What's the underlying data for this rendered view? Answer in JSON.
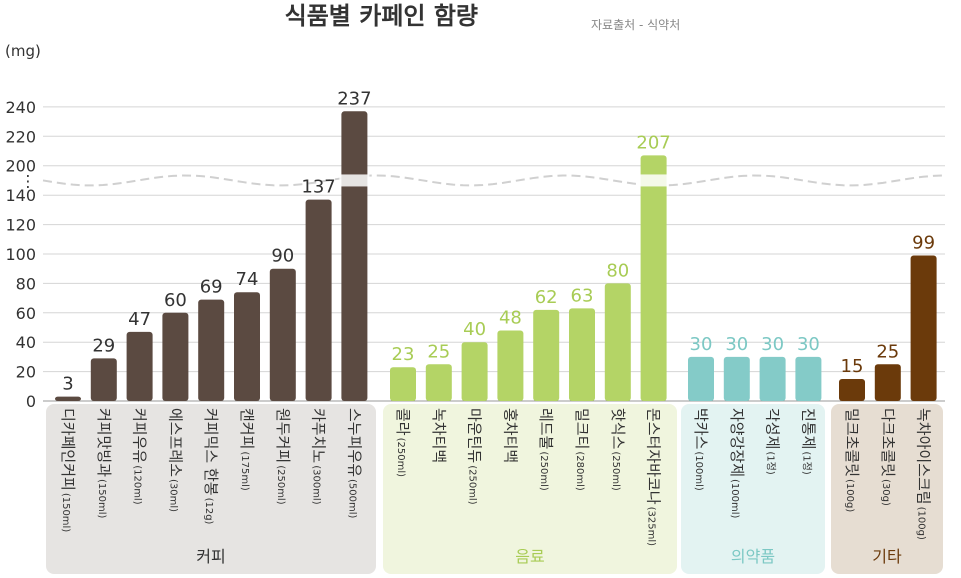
{
  "chart_data": {
    "type": "bar",
    "title": "식품별 카페인 함량",
    "source": "자료출처 - 식약처",
    "unit": "(mg)",
    "y_ticks": [
      "240",
      "220",
      "200",
      "⋮",
      "140",
      "120",
      "100",
      "80",
      "60",
      "40",
      "20",
      "0"
    ],
    "axis_break": {
      "from": 140,
      "to": 200
    },
    "ylim": [
      0,
      240
    ],
    "grid": true,
    "groups": [
      {
        "name": "커피",
        "bar_color": "#5b4a41",
        "label_color": "#333333",
        "bg_color": "#e6e4e2",
        "items": [
          {
            "name": "디카페인커피",
            "amount": "(150ml)",
            "value": 3
          },
          {
            "name": "커피맛빙과",
            "amount": "(150ml)",
            "value": 29
          },
          {
            "name": "커피우유",
            "amount": "(120ml)",
            "value": 47
          },
          {
            "name": "에스프레소",
            "amount": "(30ml)",
            "value": 60
          },
          {
            "name": "커피믹스 한봉",
            "amount": "(12g)",
            "value": 69
          },
          {
            "name": "캔커피",
            "amount": "(175ml)",
            "value": 74
          },
          {
            "name": "원두커피",
            "amount": "(250ml)",
            "value": 90
          },
          {
            "name": "카푸치노",
            "amount": "(300ml)",
            "value": 137
          },
          {
            "name": "스누피우유",
            "amount": "(500ml)",
            "value": 237
          }
        ]
      },
      {
        "name": "음료",
        "bar_color": "#b4d466",
        "label_color": "#a8cc55",
        "bg_color": "#f0f5de",
        "items": [
          {
            "name": "콜라",
            "amount": "(250ml)",
            "value": 23
          },
          {
            "name": "녹차티백",
            "amount": "",
            "value": 25
          },
          {
            "name": "마운틴듀",
            "amount": "(250ml)",
            "value": 40
          },
          {
            "name": "홍차티백",
            "amount": "",
            "value": 48
          },
          {
            "name": "레드불",
            "amount": "(250ml)",
            "value": 62
          },
          {
            "name": "밀크티",
            "amount": "(280ml)",
            "value": 63
          },
          {
            "name": "핫식스",
            "amount": "(250ml)",
            "value": 80
          },
          {
            "name": "몬스터자바코나",
            "amount": "(325ml)",
            "value": 207
          }
        ]
      },
      {
        "name": "의약품",
        "bar_color": "#84cbc8",
        "label_color": "#7cc8c4",
        "bg_color": "#e3f3f2",
        "items": [
          {
            "name": "박카스",
            "amount": "(100ml)",
            "value": 30
          },
          {
            "name": "자양강장제",
            "amount": "(100ml)",
            "value": 30
          },
          {
            "name": "각성제",
            "amount": "(1정)",
            "value": 30
          },
          {
            "name": "진통제",
            "amount": "(1정)",
            "value": 30
          }
        ]
      },
      {
        "name": "기타",
        "bar_color": "#6b3a0b",
        "label_color": "#6b3a0b",
        "bg_color": "#e6ddd2",
        "items": [
          {
            "name": "밀크초콜릿",
            "amount": "(100g)",
            "value": 15
          },
          {
            "name": "다크초콜릿",
            "amount": "(30g)",
            "value": 25
          },
          {
            "name": "녹차아이스크림",
            "amount": "(100g)",
            "value": 99
          }
        ]
      }
    ]
  }
}
